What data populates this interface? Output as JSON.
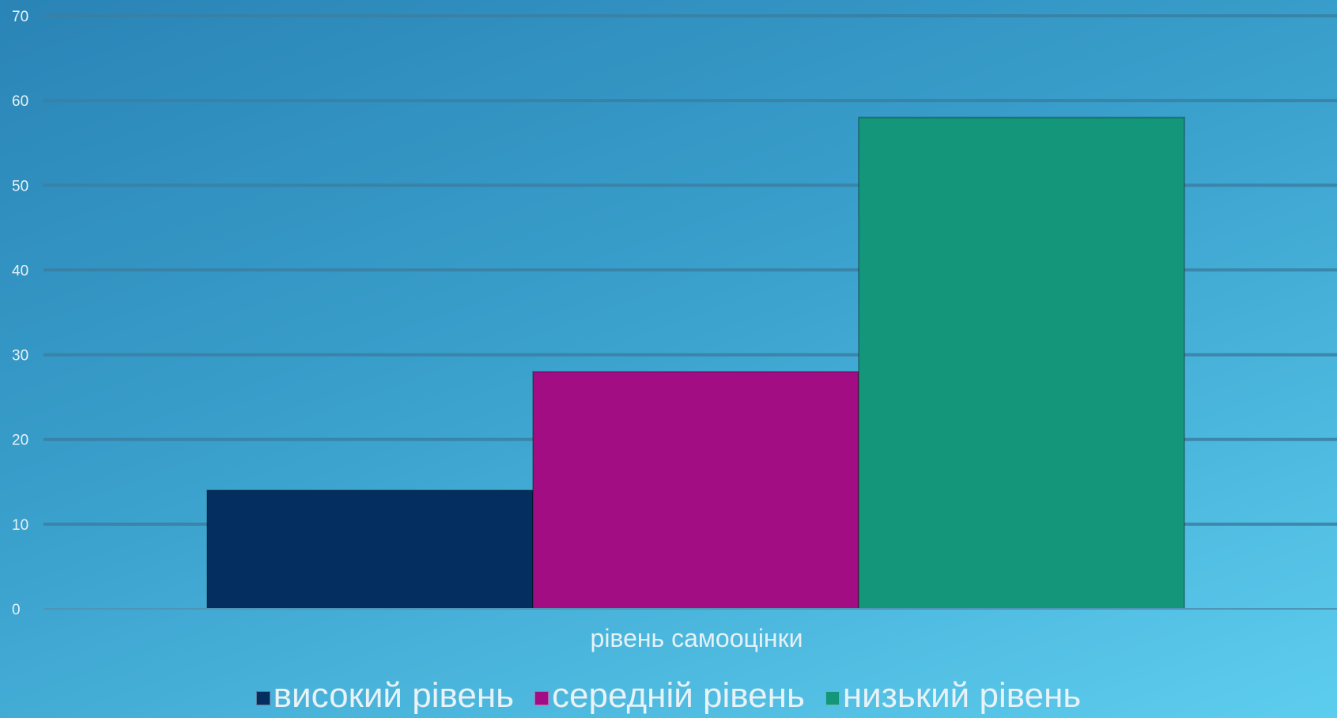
{
  "chart_data": {
    "type": "bar",
    "categories": [
      "рівень самооцінки"
    ],
    "series": [
      {
        "name": "високий рівень",
        "values": [
          14
        ],
        "color": "#052e60"
      },
      {
        "name": "середній рівень",
        "values": [
          28
        ],
        "color": "#a30d84"
      },
      {
        "name": "низький рівень",
        "values": [
          58
        ],
        "color": "#13967a"
      }
    ],
    "title": "",
    "xlabel": "",
    "ylabel": "",
    "ylim": [
      0,
      70
    ],
    "yticks": [
      "0",
      "10",
      "20",
      "30",
      "40",
      "50",
      "60",
      "70"
    ],
    "grid": true,
    "legend": "bottom"
  }
}
